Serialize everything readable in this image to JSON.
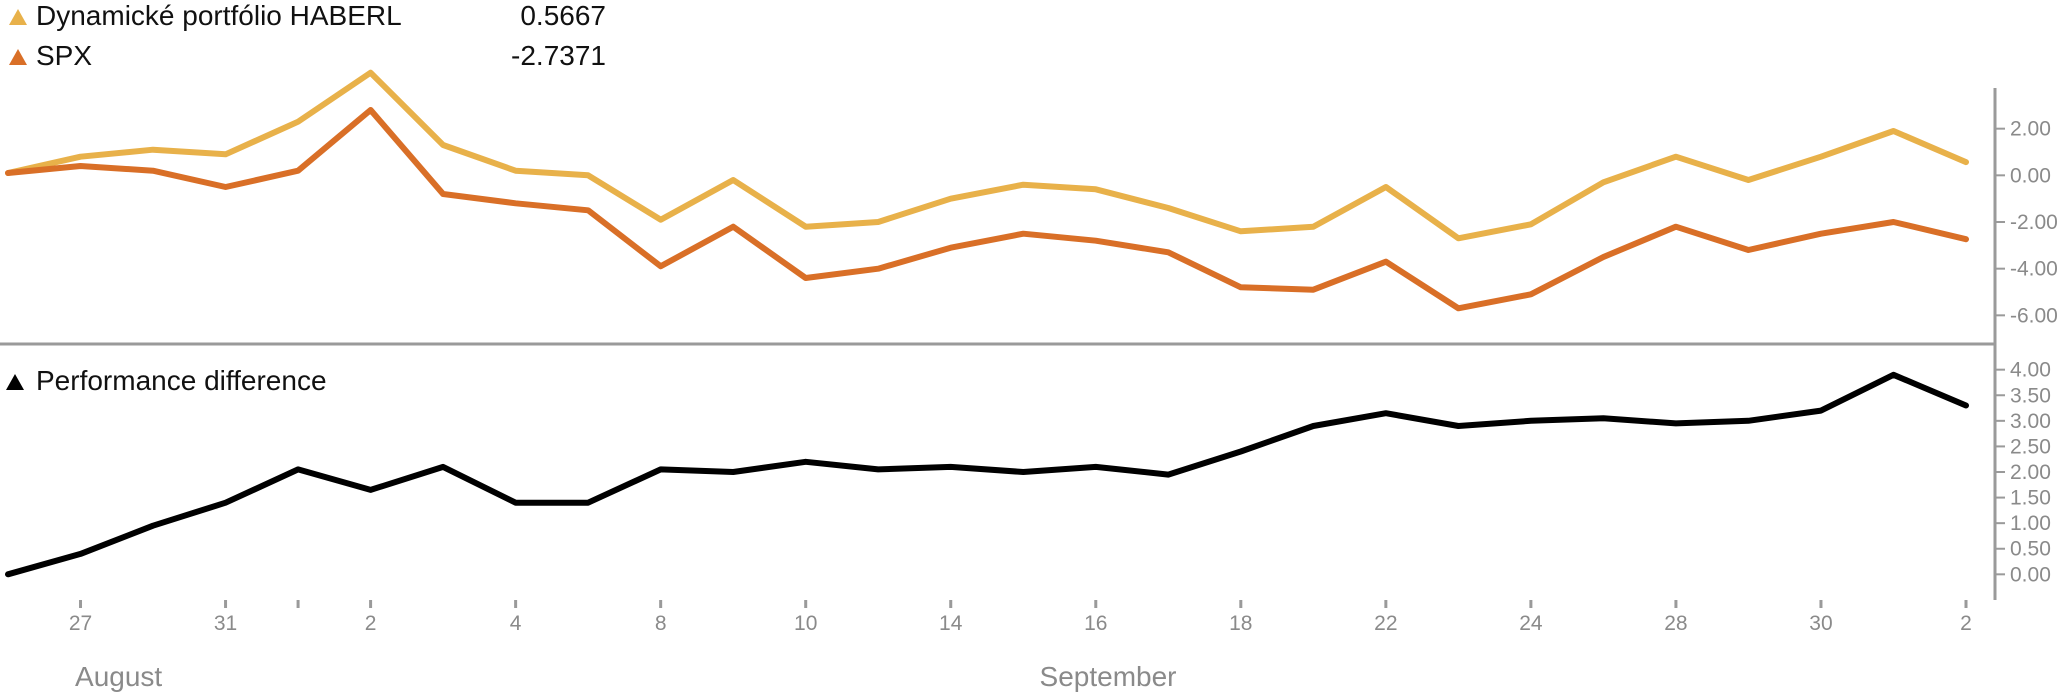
{
  "legend_top": [
    {
      "label": "Dynamické portfólio HABERL",
      "value": "0.5667",
      "color": "#e8b14a"
    },
    {
      "label": "SPX",
      "value": "-2.7371",
      "color": "#d96f27"
    }
  ],
  "legend_bottom": [
    {
      "label": "Performance difference",
      "color": "#000000"
    }
  ],
  "chart_data": [
    {
      "type": "line",
      "x": [
        0,
        1,
        2,
        3,
        4,
        5,
        6,
        7,
        8,
        9,
        10,
        11,
        12,
        13,
        14,
        15,
        16,
        17,
        18,
        19,
        20,
        21,
        22,
        23,
        24,
        25,
        26,
        27
      ],
      "ylim": [
        -6.5,
        2.8
      ],
      "yticks": [
        "2.00",
        "0.00",
        "-2.00",
        "-4.00",
        "-6.00"
      ],
      "ytick_values": [
        2,
        0,
        -2,
        -4,
        -6
      ],
      "series": [
        {
          "name": "Dynamické portfólio HABERL",
          "color": "#e8b14a",
          "values": [
            0.1,
            0.8,
            1.1,
            0.9,
            2.3,
            4.4,
            1.3,
            0.2,
            0.0,
            -1.9,
            -0.2,
            -2.2,
            -2.0,
            -1.0,
            -0.4,
            -0.6,
            -1.4,
            -2.4,
            -2.2,
            -0.5,
            -2.7,
            -2.1,
            -0.3,
            0.8,
            -0.2,
            0.8,
            1.9,
            0.5667
          ]
        },
        {
          "name": "SPX",
          "color": "#d96f27",
          "values": [
            0.1,
            0.4,
            0.2,
            -0.5,
            0.2,
            2.8,
            -0.8,
            -1.2,
            -1.5,
            -3.9,
            -2.2,
            -4.4,
            -4.0,
            -3.1,
            -2.5,
            -2.8,
            -3.3,
            -4.8,
            -4.9,
            -3.7,
            -5.7,
            -5.1,
            -3.5,
            -2.2,
            -3.2,
            -2.5,
            -2.0,
            -2.7371
          ]
        }
      ]
    },
    {
      "type": "line",
      "x": [
        0,
        1,
        2,
        3,
        4,
        5,
        6,
        7,
        8,
        9,
        10,
        11,
        12,
        13,
        14,
        15,
        16,
        17,
        18,
        19,
        20,
        21,
        22,
        23,
        24,
        25,
        26,
        27
      ],
      "ylim": [
        -0.15,
        4.15
      ],
      "yticks": [
        "4.00",
        "3.50",
        "3.00",
        "2.50",
        "2.00",
        "1.50",
        "1.00",
        "0.50",
        "0.00"
      ],
      "ytick_values": [
        4,
        3.5,
        3,
        2.5,
        2,
        1.5,
        1,
        0.5,
        0
      ],
      "series": [
        {
          "name": "Performance difference",
          "color": "#000000",
          "values": [
            0.0,
            0.4,
            0.95,
            1.4,
            2.05,
            1.65,
            2.1,
            1.4,
            1.4,
            2.05,
            2.0,
            2.2,
            2.05,
            2.1,
            2.0,
            2.1,
            1.95,
            2.4,
            2.9,
            3.15,
            2.9,
            3.0,
            3.05,
            2.95,
            3.0,
            3.2,
            3.9,
            3.3
          ]
        }
      ]
    }
  ],
  "x_axis": {
    "tick_labels": [
      {
        "label": "27",
        "x": 1
      },
      {
        "label": "31",
        "x": 3
      },
      {
        "label": "",
        "x": 4
      },
      {
        "label": "2",
        "x": 5
      },
      {
        "label": "4",
        "x": 7
      },
      {
        "label": "8",
        "x": 9
      },
      {
        "label": "10",
        "x": 11
      },
      {
        "label": "14",
        "x": 13
      },
      {
        "label": "16",
        "x": 15
      },
      {
        "label": "18",
        "x": 17
      },
      {
        "label": "22",
        "x": 19
      },
      {
        "label": "24",
        "x": 21
      },
      {
        "label": "28",
        "x": 23
      },
      {
        "label": "30",
        "x": 25
      },
      {
        "label": "2",
        "x": 27
      }
    ],
    "months": [
      {
        "label": "August",
        "x": 1.2
      },
      {
        "label": "September",
        "x": 14.5
      }
    ]
  }
}
